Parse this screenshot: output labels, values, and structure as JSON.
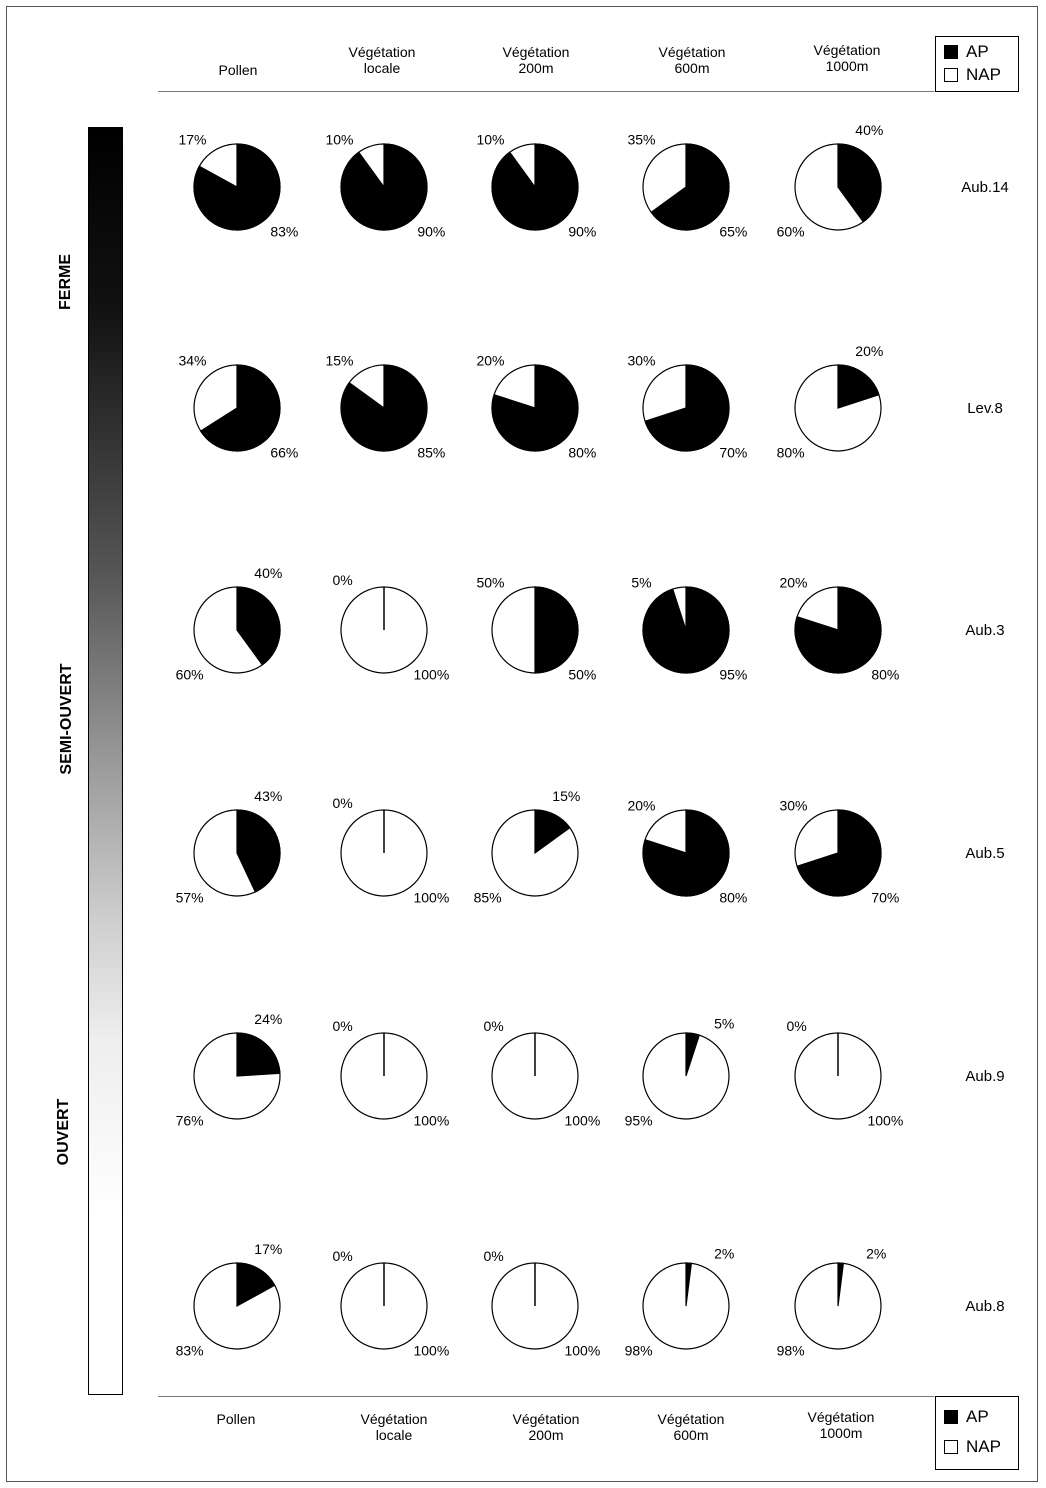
{
  "columns": [
    {
      "line1": "Pollen",
      "line2": ""
    },
    {
      "line1": "Végétation",
      "line2": "locale"
    },
    {
      "line1": "Végétation",
      "line2": "200m"
    },
    {
      "line1": "Végétation",
      "line2": "600m"
    },
    {
      "line1": "Végétation",
      "line2": "1000m"
    }
  ],
  "legend": {
    "ap": "AP",
    "nap": "NAP",
    "ap_color": "#000000",
    "nap_color": "#ffffff"
  },
  "openness": {
    "closed": "FERME",
    "semi": "SEMI-OUVERT",
    "open": "OUVERT"
  },
  "chart_data": {
    "type": "pie",
    "categories": [
      "AP",
      "NAP"
    ],
    "columns": [
      "Pollen",
      "Végétation locale",
      "Végétation 200m",
      "Végétation 600m",
      "Végétation 1000m"
    ],
    "rows": [
      {
        "site": "Aub.14",
        "ap": [
          83,
          90,
          90,
          65,
          40
        ],
        "nap": [
          17,
          10,
          10,
          35,
          60
        ]
      },
      {
        "site": "Lev.8",
        "ap": [
          66,
          85,
          80,
          70,
          20
        ],
        "nap": [
          34,
          15,
          20,
          30,
          80
        ]
      },
      {
        "site": "Aub.3",
        "ap": [
          40,
          0,
          50,
          95,
          80
        ],
        "nap": [
          60,
          100,
          50,
          5,
          20
        ]
      },
      {
        "site": "Aub.5",
        "ap": [
          43,
          0,
          15,
          80,
          70
        ],
        "nap": [
          57,
          100,
          85,
          20,
          30
        ]
      },
      {
        "site": "Aub.9",
        "ap": [
          24,
          0,
          0,
          5,
          0
        ],
        "nap": [
          76,
          100,
          100,
          95,
          100
        ]
      },
      {
        "site": "Aub.8",
        "ap": [
          17,
          0,
          0,
          2,
          2
        ],
        "nap": [
          83,
          100,
          100,
          98,
          98
        ]
      }
    ]
  }
}
